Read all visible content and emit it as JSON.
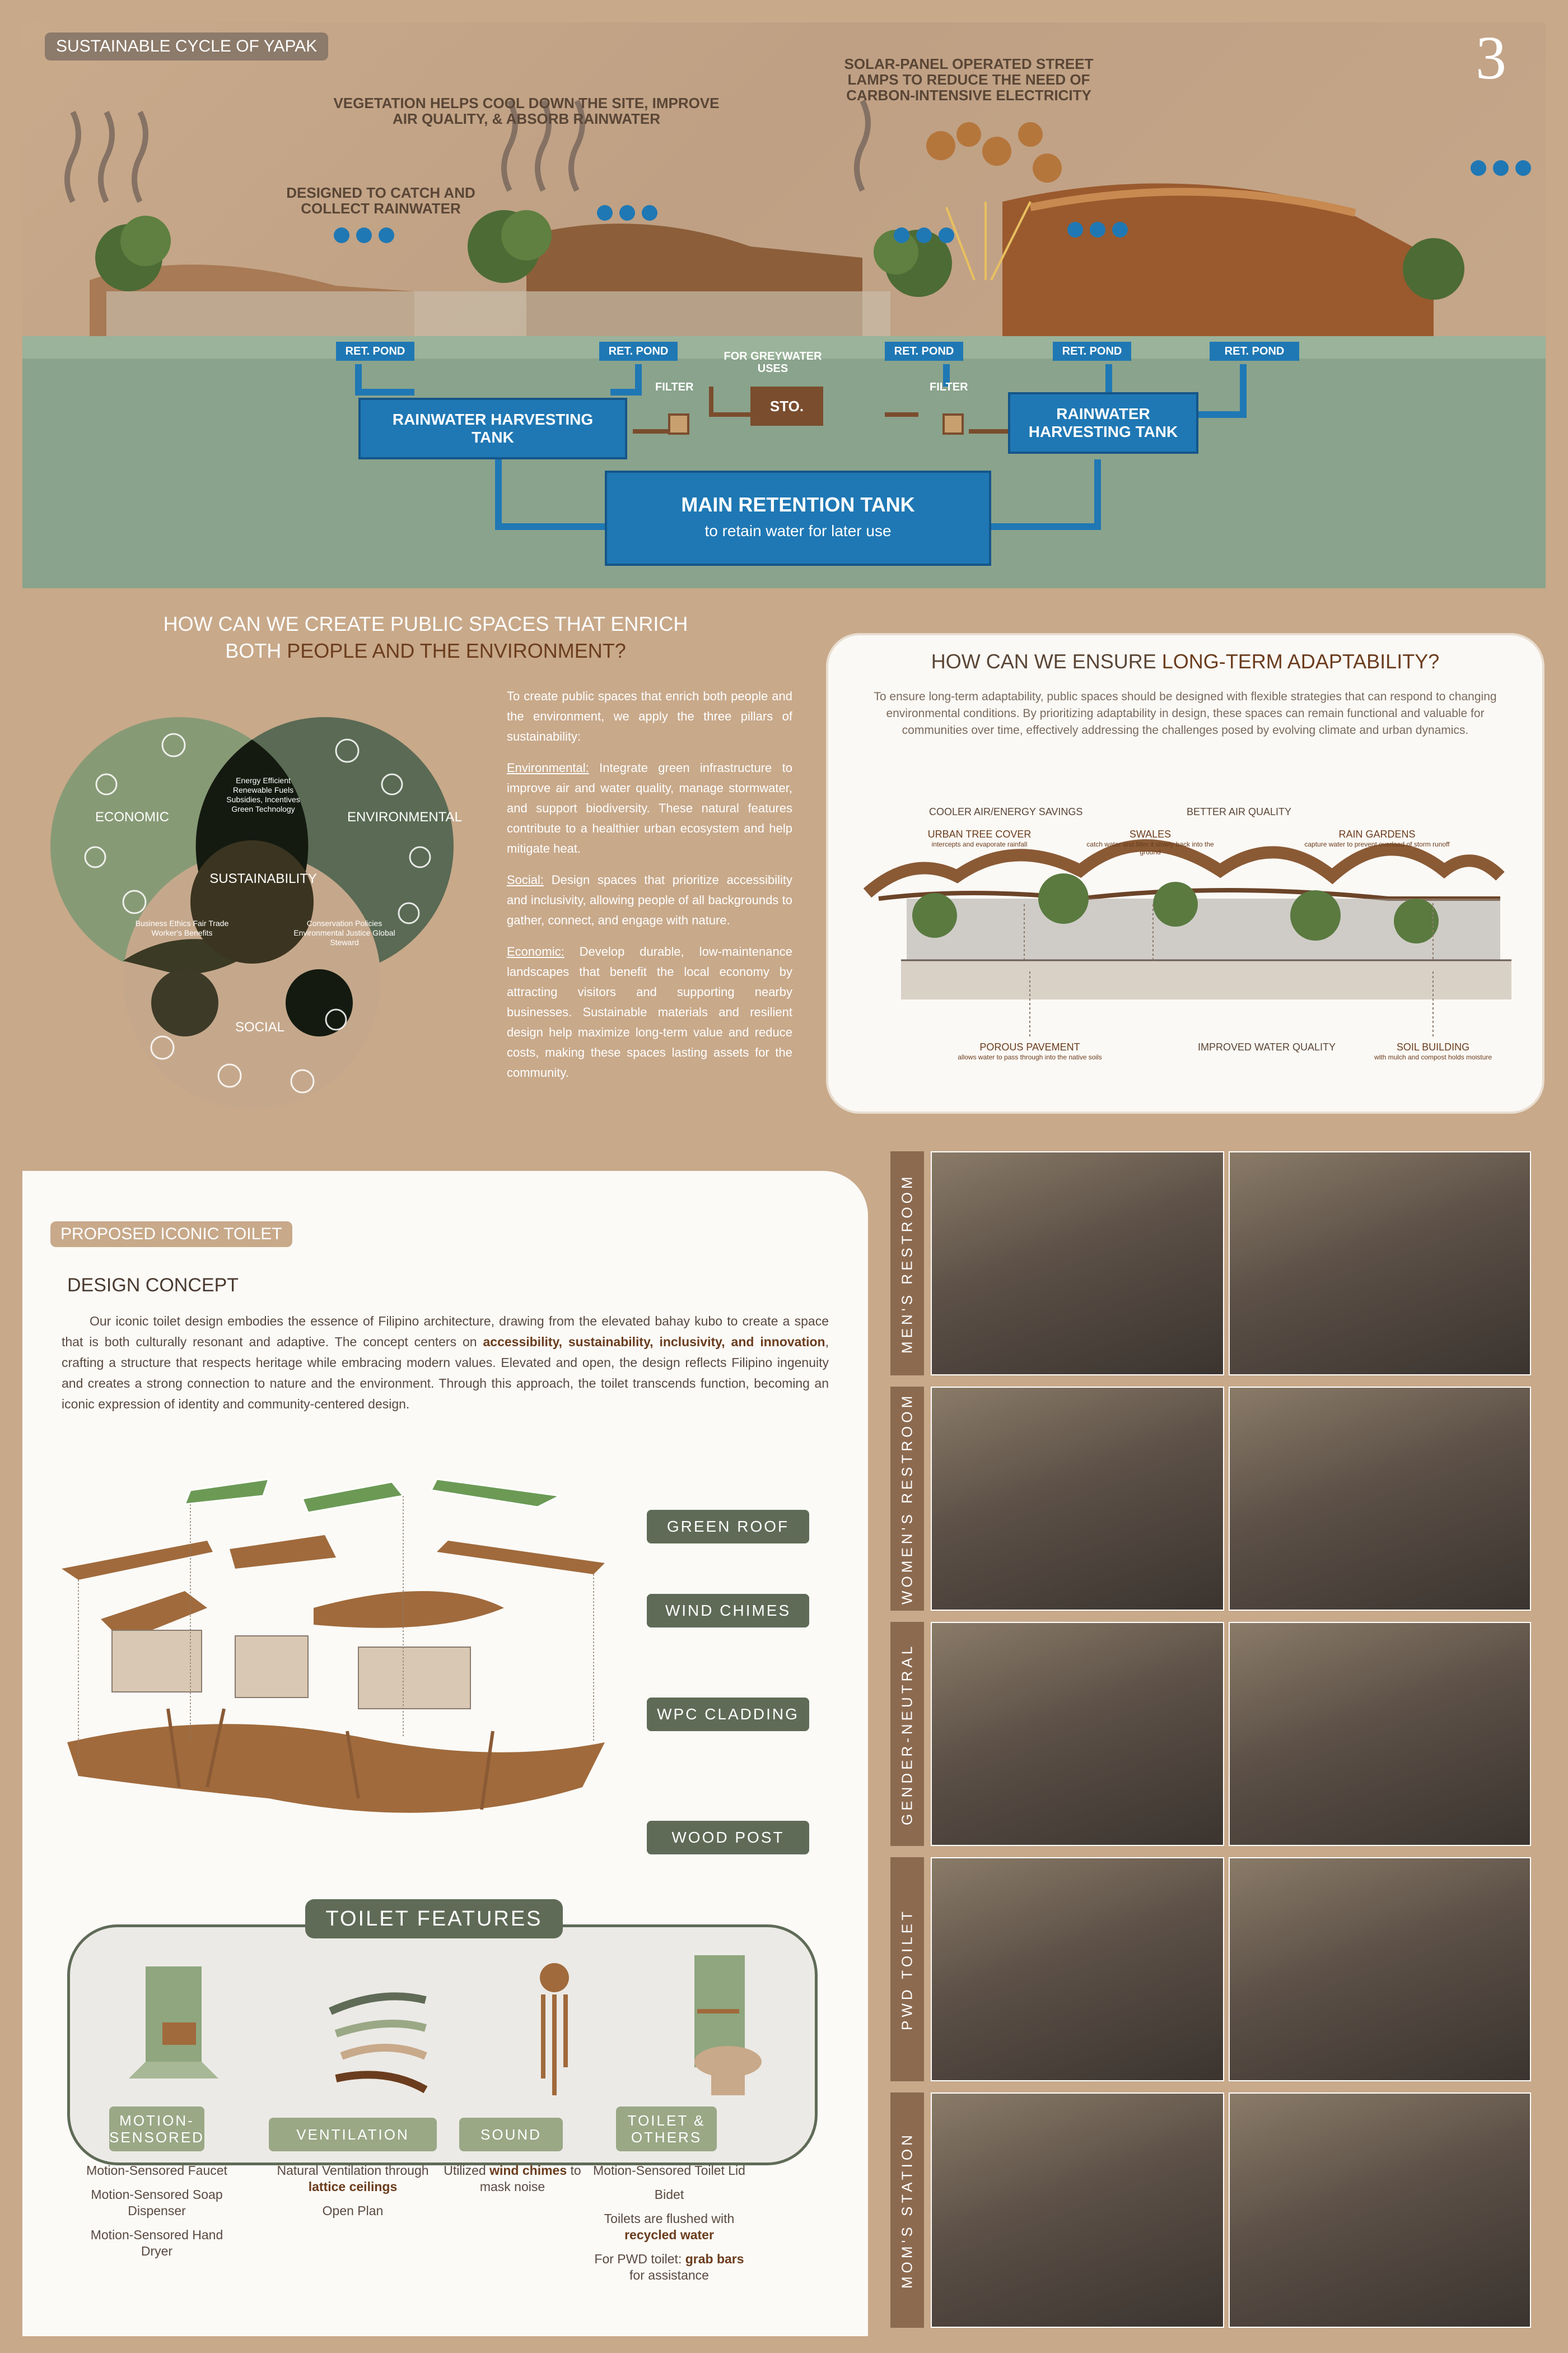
{
  "page_number": "3",
  "cycle": {
    "title": "SUSTAINABLE CYCLE OF YAPAK",
    "note_solar": "SOLAR-PANEL OPERATED STREET LAMPS TO REDUCE THE NEED OF CARBON-INTENSIVE ELECTRICITY",
    "note_vegetation": "VEGETATION HELPS COOL DOWN THE SITE, IMPROVE AIR QUALITY, & ABSORB RAINWATER",
    "note_catch": "DESIGNED TO CATCH AND COLLECT RAINWATER",
    "ret_pond": "RET. POND",
    "greywater": "FOR GREYWATER USES",
    "filter": "FILTER",
    "sto": "STO.",
    "harvest_tank": "RAINWATER HARVESTING TANK",
    "main_tank": "MAIN RETENTION TANK",
    "main_tank_sub": "to retain water for later use"
  },
  "public": {
    "question_line1": "HOW CAN WE CREATE PUBLIC SPACES THAT ENRICH",
    "question_line2a": "BOTH ",
    "question_line2b": "PEOPLE AND THE ENVIRONMENT?",
    "venn": {
      "economic": "ECONOMIC",
      "environmental": "ENVIRONMENTAL",
      "social": "SOCIAL",
      "center": "SUSTAINABILITY",
      "econ_env": "Energy Efficient Renewable Fuels Subsidies, Incentives Green Technology",
      "econ_soc": "Business Ethics Fair Trade Worker's Benefits",
      "env_soc": "Conservation Policies Environmental Justice Global Steward"
    },
    "intro": "To create public spaces that enrich both people and the environment, we apply the three pillars of sustainability:",
    "env_label": "Environmental:",
    "env_text": " Integrate green infrastructure to improve air and water quality, manage stormwater, and support biodiversity. These natural features contribute to a healthier urban ecosystem and help mitigate heat.",
    "soc_label": "Social:",
    "soc_text": " Design spaces that prioritize accessibility and inclusivity, allowing people of all backgrounds to gather, connect, and engage with nature.",
    "eco_label": "Economic:",
    "eco_text": " Develop durable, low-maintenance landscapes that benefit the local economy by attracting visitors and supporting nearby businesses. Sustainable materials and resilient design help maximize long-term value and reduce costs, making these spaces lasting assets for the community."
  },
  "adapt": {
    "title_a": "HOW CAN WE ENSURE ",
    "title_b": "LONG-TERM ADAPTABILITY?",
    "text": "To ensure long-term adaptability, public spaces should be designed with flexible strategies that can respond to changing environmental conditions. By prioritizing adaptability in design, these spaces can remain functional and valuable for communities over time, effectively addressing the challenges posed by evolving climate and urban dynamics.",
    "cooler": "COOLER AIR/ENERGY SAVINGS",
    "better_air": "BETTER AIR QUALITY",
    "tree_cover": "URBAN TREE COVER",
    "tree_cover_sub": "intercepts and evaporate rainfall",
    "swales": "SWALES",
    "swales_sub": "catch water and filter it slowly back into the ground",
    "rain_gardens": "RAIN GARDENS",
    "rain_gardens_sub": "capture water to prevent overload of storm runoff",
    "porous": "POROUS PAVEMENT",
    "porous_sub": "allows water to pass through into the native soils",
    "water_quality": "IMPROVED WATER QUALITY",
    "soil": "SOIL BUILDING",
    "soil_sub": "with mulch and compost holds moisture"
  },
  "toilet": {
    "title": "PROPOSED ICONIC TOILET",
    "concept_title": "DESIGN CONCEPT",
    "concept_1": "Our iconic toilet design embodies the essence of Filipino architecture, drawing from the elevated bahay kubo to create a space that is both culturally resonant and adaptive. The concept centers on ",
    "concept_bold": "accessibility, sustainability, inclusivity, and innovation",
    "concept_2": ", crafting a structure that respects heritage while embracing modern values. Elevated and open, the design reflects Filipino ingenuity and creates a strong connection to nature and the environment. Through this approach, the toilet transcends function, becoming an iconic expression of identity and community-centered design.",
    "layers": [
      "GREEN ROOF",
      "WIND CHIMES",
      "WPC CLADDING",
      "WOOD POST"
    ],
    "features_title": "TOILET FEATURES",
    "features": [
      {
        "label": "MOTION-SENSORED"
      },
      {
        "label": "VENTILATION"
      },
      {
        "label": "SOUND"
      },
      {
        "label": "TOILET & OTHERS"
      }
    ],
    "f1_a": "Motion-Sensored Faucet",
    "f1_b": "Motion-Sensored Soap Dispenser",
    "f1_c": "Motion-Sensored Hand Dryer",
    "f2_a": "Natural Ventilation through ",
    "f2_a_bold": "lattice ceilings",
    "f2_b": "Open Plan",
    "f3_a": "Utilized ",
    "f3_a_bold": "wind chimes",
    "f3_a_end": " to mask noise",
    "f4_a": "Motion-Sensored Toilet Lid",
    "f4_b": "Bidet",
    "f4_c": "Toilets are flushed with ",
    "f4_c_bold": "recycled water",
    "f4_d": "For PWD toilet: ",
    "f4_d_bold": "grab bars",
    "f4_d_end": " for assistance"
  },
  "rooms": [
    "MEN'S RESTROOM",
    "WOMEN'S RESTROOM",
    "GENDER-NEUTRAL",
    "PWD TOILET",
    "MOM'S STATION"
  ],
  "colors": {
    "accent_brown": "#6b3d1e",
    "sage": "#5f6b57",
    "water_blue": "#1f78b4"
  }
}
